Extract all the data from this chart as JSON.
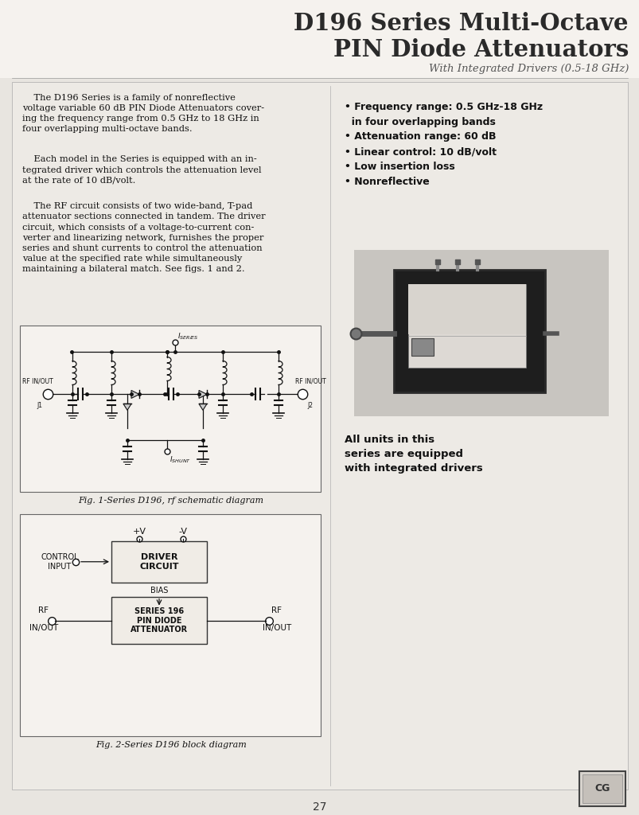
{
  "page_bg": "#e8e5e0",
  "header_bg": "#f0ede8",
  "content_bg": "#ebe7e2",
  "title_line1": "D196 Series Multi-Octave",
  "title_line2": "PIN Diode Attenuators",
  "title_subtitle": "With Integrated Drivers (0.5-18 GHz)",
  "title_color": "#2a2a2a",
  "body_text1": "    The D196 Series is a family of nonreflective\nvoltage variable 60 dB PIN Diode Attenuators cover-\ning the frequency range from 0.5 GHz to 18 GHz in\nfour overlapping multi-octave bands.",
  "body_text2": "    Each model in the Series is equipped with an in-\ntegrated driver which controls the attenuation level\nat the rate of 10 dB/volt.",
  "body_text3": "    The RF circuit consists of two wide-band, T-pad\nattenuator sections connected in tandem. The driver\ncircuit, which consists of a voltage-to-current con-\nverter and linearizing network, furnishes the proper\nseries and shunt currents to control the attenuation\nvalue at the specified rate while simultaneously\nmaintaining a bilateral match. See figs. 1 and 2.",
  "bullet_items_line1": [
    "Frequency range: 0.5 GHz-18 GHz",
    "Attenuation range: 60 dB",
    "Linear control: 10 dB/volt",
    "Low insertion loss",
    "Nonreflective"
  ],
  "bullet_items_line2": [
    "in four overlapping bands",
    "",
    "",
    "",
    ""
  ],
  "fig1_caption": "Fig. 1-Series D196, rf schematic diagram",
  "fig2_caption": "Fig. 2-Series D196 block diagram",
  "units_text": "All units in this\nseries are equipped\nwith integrated drivers",
  "page_number": "27",
  "text_color": "#111111"
}
